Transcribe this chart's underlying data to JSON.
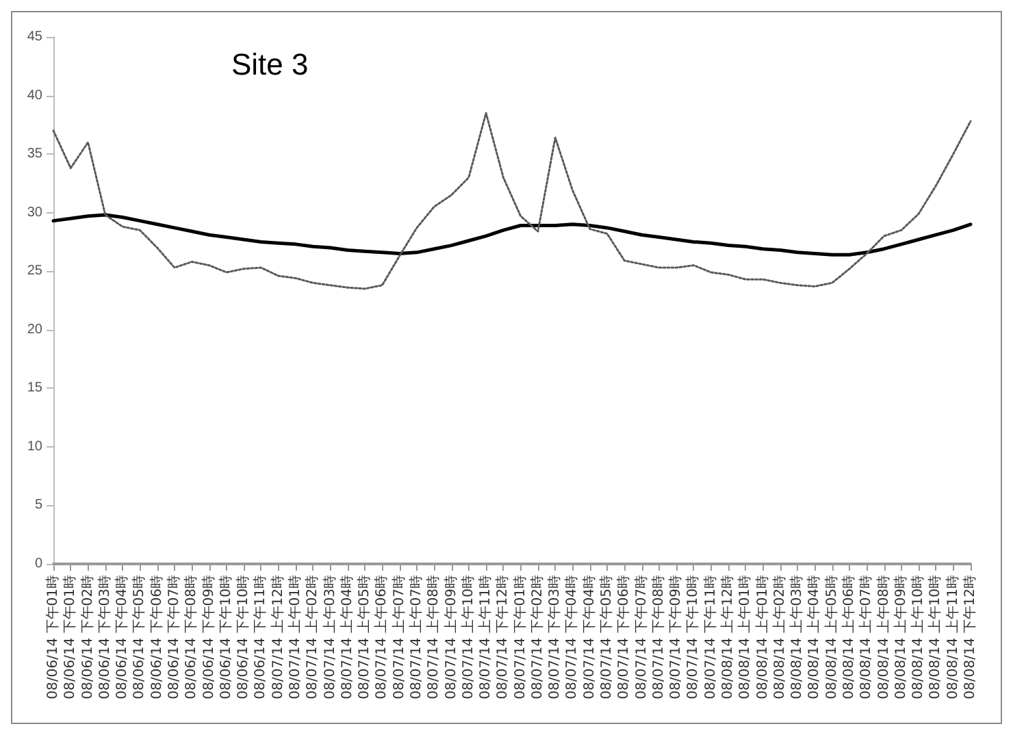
{
  "chart_data": {
    "type": "line",
    "title": "Site 3",
    "categories": [
      "08/06/14 下午01時",
      "08/06/14 下午01時",
      "08/06/14 下午02時",
      "08/06/14 下午03時",
      "08/06/14 下午04時",
      "08/06/14 下午05時",
      "08/06/14 下午06時",
      "08/06/14 下午07時",
      "08/06/14 下午08時",
      "08/06/14 下午09時",
      "08/06/14 下午10時",
      "08/06/14 下午10時",
      "08/06/14 下午11時",
      "08/07/14 上午12時",
      "08/07/14 上午01時",
      "08/07/14 上午02時",
      "08/07/14 上午03時",
      "08/07/14 上午04時",
      "08/07/14 上午05時",
      "08/07/14 上午06時",
      "08/07/14 上午07時",
      "08/07/14 上午07時",
      "08/07/14 上午08時",
      "08/07/14 上午09時",
      "08/07/14 上午10時",
      "08/07/14 上午11時",
      "08/07/14 下午12時",
      "08/07/14 下午01時",
      "08/07/14 下午02時",
      "08/07/14 下午03時",
      "08/07/14 下午04時",
      "08/07/14 下午04時",
      "08/07/14 下午05時",
      "08/07/14 下午06時",
      "08/07/14 下午07時",
      "08/07/14 下午08時",
      "08/07/14 下午09時",
      "08/07/14 下午10時",
      "08/07/14 下午11時",
      "08/08/14 上午12時",
      "08/08/14 上午01時",
      "08/08/14 上午01時",
      "08/08/14 上午02時",
      "08/08/14 上午03時",
      "08/08/14 上午04時",
      "08/08/14 上午05時",
      "08/08/14 上午06時",
      "08/08/14 上午07時",
      "08/08/14 上午08時",
      "08/08/14 上午09時",
      "08/08/14 上午10時",
      "08/08/14 上午10時",
      "08/08/14 上午11時",
      "08/08/14 下午12時"
    ],
    "series": [
      {
        "color": "#000000",
        "line_style": "solid",
        "values": [
          29.3,
          29.5,
          29.7,
          29.8,
          29.6,
          29.3,
          29.0,
          28.7,
          28.4,
          28.1,
          27.9,
          27.7,
          27.5,
          27.4,
          27.3,
          27.1,
          27.0,
          26.8,
          26.7,
          26.6,
          26.5,
          26.6,
          26.9,
          27.2,
          27.6,
          28.0,
          28.5,
          28.9,
          28.9,
          28.9,
          29.0,
          28.9,
          28.7,
          28.4,
          28.1,
          27.9,
          27.7,
          27.5,
          27.4,
          27.2,
          27.1,
          26.9,
          26.8,
          26.6,
          26.5,
          26.4,
          26.4,
          26.6,
          26.9,
          27.3,
          27.7,
          28.1,
          28.5,
          29.0
        ]
      },
      {
        "color": "#595959",
        "line_style": "dotted",
        "values": [
          37.0,
          33.8,
          36.0,
          29.8,
          28.8,
          28.5,
          27.0,
          25.3,
          25.8,
          25.5,
          24.9,
          25.2,
          25.3,
          24.6,
          24.4,
          24.0,
          23.8,
          23.6,
          23.5,
          23.8,
          26.3,
          28.7,
          30.5,
          31.5,
          33.0,
          38.5,
          33.0,
          29.7,
          28.4,
          36.4,
          31.9,
          28.6,
          28.2,
          25.9,
          25.6,
          25.3,
          25.3,
          25.5,
          24.9,
          24.7,
          24.3,
          24.3,
          24.0,
          23.8,
          23.7,
          24.0,
          25.2,
          26.5,
          28.0,
          28.5,
          29.9,
          32.3,
          35.0,
          37.8
        ]
      }
    ],
    "ylim": [
      0,
      45
    ],
    "yticks": [
      0,
      5,
      10,
      15,
      20,
      25,
      30,
      35,
      40,
      45
    ],
    "grid": false,
    "marker": "none"
  }
}
